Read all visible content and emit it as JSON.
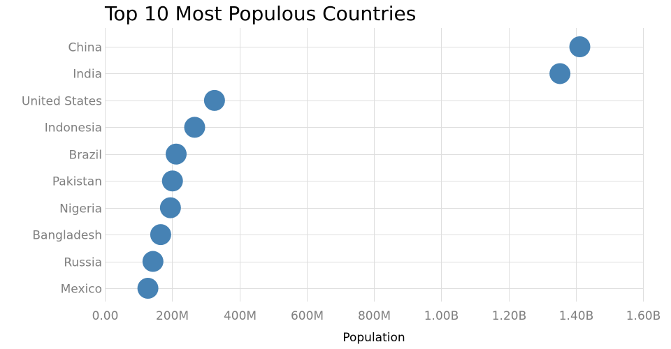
{
  "chart_data": {
    "type": "scatter",
    "title": "Top 10 Most Populous Countries",
    "xlabel": "Population",
    "ylabel": "",
    "xlim": [
      0,
      1600000000
    ],
    "x_ticks": [
      0,
      200000000,
      400000000,
      600000000,
      800000000,
      1000000000,
      1200000000,
      1400000000,
      1600000000
    ],
    "x_tick_labels": [
      "0.00",
      "200M",
      "400M",
      "600M",
      "800M",
      "1.00B",
      "1.20B",
      "1.40B",
      "1.60B"
    ],
    "categories": [
      "China",
      "India",
      "United States",
      "Indonesia",
      "Brazil",
      "Pakistan",
      "Nigeria",
      "Bangladesh",
      "Russia",
      "Mexico"
    ],
    "values": [
      1412000000,
      1353000000,
      326000000,
      267000000,
      212000000,
      201000000,
      195000000,
      166000000,
      143000000,
      128000000
    ],
    "marker_color": "#4682b4",
    "grid": true,
    "legend": "none"
  }
}
